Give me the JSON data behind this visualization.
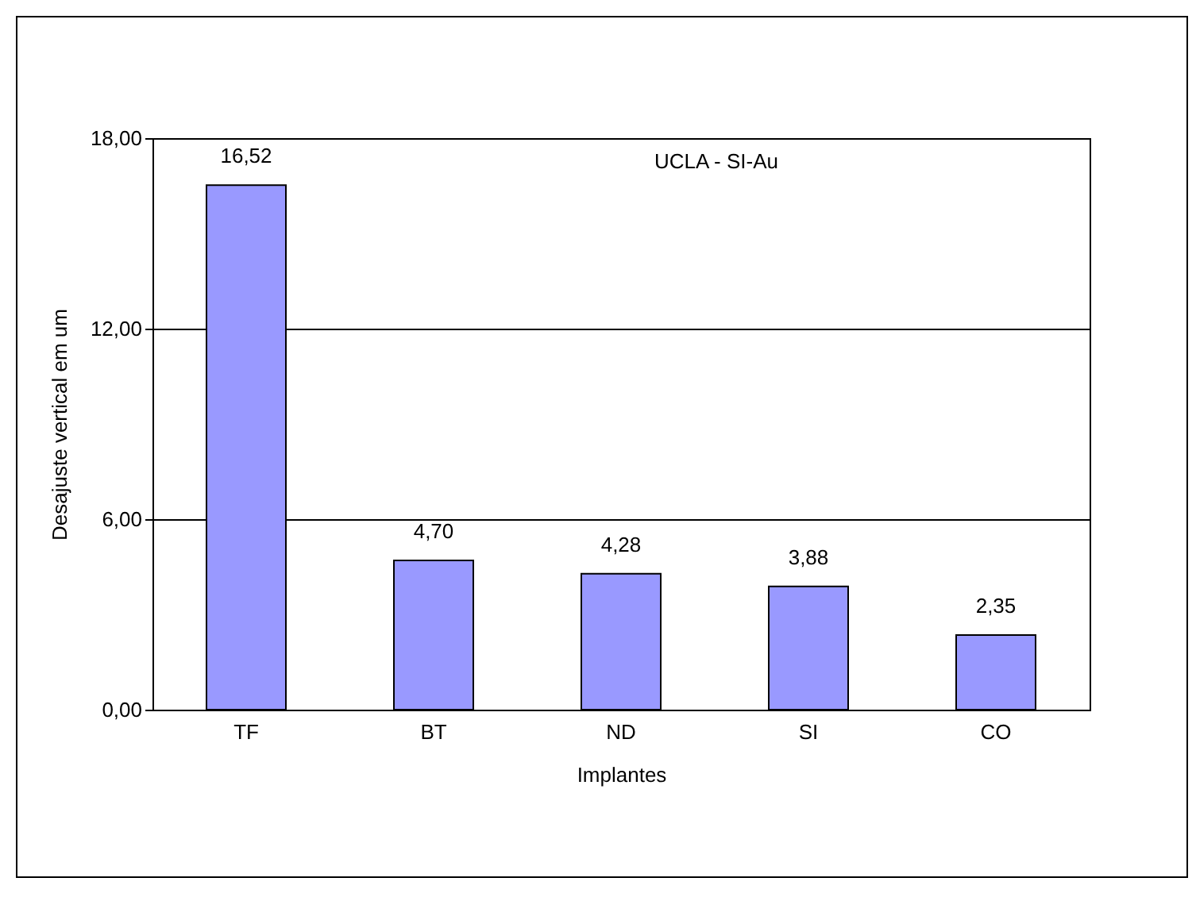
{
  "chart_data": {
    "type": "bar",
    "title": "UCLA - SI-Au",
    "xlabel": "Implantes",
    "ylabel": "Desajuste vertical em um",
    "categories": [
      "TF",
      "BT",
      "ND",
      "SI",
      "CO"
    ],
    "values": [
      16.52,
      4.7,
      4.28,
      3.88,
      2.35
    ],
    "value_labels": [
      "16,52",
      "4,70",
      "4,28",
      "3,88",
      "2,35"
    ],
    "color": "#9999ff",
    "ylim": [
      0,
      18
    ],
    "yticks": [
      {
        "value": 0,
        "label": "0,00"
      },
      {
        "value": 6,
        "label": "6,00"
      },
      {
        "value": 12,
        "label": "12,00"
      },
      {
        "value": 18,
        "label": "18,00"
      }
    ],
    "grid": "y"
  }
}
